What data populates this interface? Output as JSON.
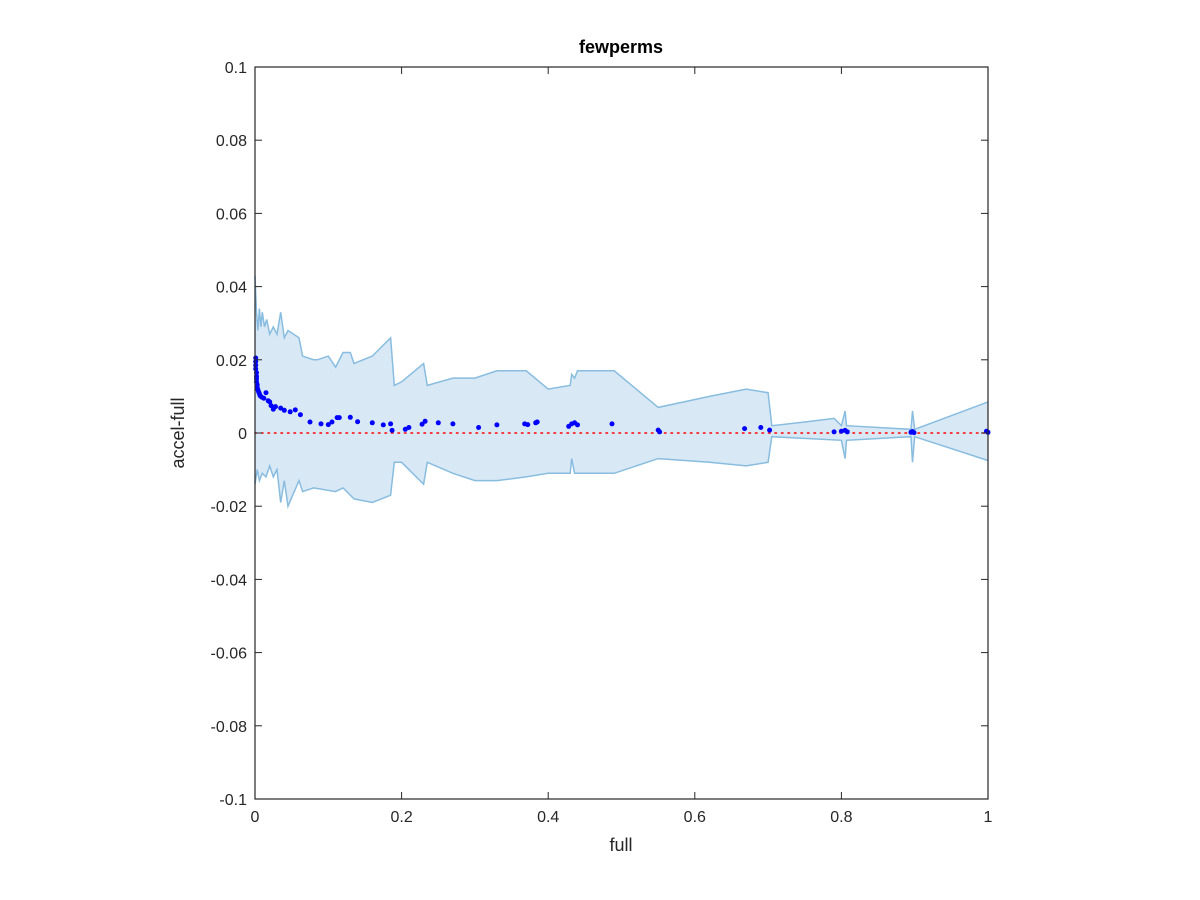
{
  "chart_data": {
    "type": "scatter",
    "title": "fewperms",
    "xlabel": "full",
    "ylabel": "accel-full",
    "xlim": [
      0,
      1
    ],
    "ylim": [
      -0.1,
      0.1
    ],
    "xticks": [
      0,
      0.2,
      0.4,
      0.6,
      0.8,
      1
    ],
    "xtick_labels": [
      "0",
      "0.2",
      "0.4",
      "0.6",
      "0.8",
      "1"
    ],
    "yticks": [
      0.1,
      0.08,
      0.06,
      0.04,
      0.02,
      0,
      -0.02,
      -0.04,
      -0.06,
      -0.08,
      -0.1
    ],
    "ytick_labels": [
      "0.1",
      "0.08",
      "0.06",
      "0.04",
      "0.02",
      "0",
      "-0.02",
      "-0.04",
      "-0.06",
      "-0.08",
      "-0.1"
    ],
    "grid": false,
    "box": true,
    "reference_line": {
      "y": 0,
      "style": "dotted",
      "color": "#ff0000"
    },
    "band": {
      "fill_color": "#d9e8f5",
      "edge_color": "#88bde0",
      "upper": [
        [
          0.0,
          0.043
        ],
        [
          0.002,
          0.033
        ],
        [
          0.004,
          0.028
        ],
        [
          0.006,
          0.034
        ],
        [
          0.008,
          0.029
        ],
        [
          0.01,
          0.033
        ],
        [
          0.013,
          0.029
        ],
        [
          0.016,
          0.031
        ],
        [
          0.02,
          0.027
        ],
        [
          0.025,
          0.029
        ],
        [
          0.03,
          0.027
        ],
        [
          0.035,
          0.033
        ],
        [
          0.04,
          0.026
        ],
        [
          0.045,
          0.028
        ],
        [
          0.06,
          0.026
        ],
        [
          0.065,
          0.021
        ],
        [
          0.08,
          0.02
        ],
        [
          0.085,
          0.02
        ],
        [
          0.1,
          0.021
        ],
        [
          0.11,
          0.018
        ],
        [
          0.12,
          0.022
        ],
        [
          0.13,
          0.022
        ],
        [
          0.135,
          0.019
        ],
        [
          0.16,
          0.021
        ],
        [
          0.185,
          0.026
        ],
        [
          0.19,
          0.013
        ],
        [
          0.2,
          0.014
        ],
        [
          0.23,
          0.019
        ],
        [
          0.235,
          0.013
        ],
        [
          0.27,
          0.015
        ],
        [
          0.3,
          0.015
        ],
        [
          0.33,
          0.017
        ],
        [
          0.37,
          0.017
        ],
        [
          0.4,
          0.012
        ],
        [
          0.43,
          0.013
        ],
        [
          0.432,
          0.016
        ],
        [
          0.436,
          0.015
        ],
        [
          0.44,
          0.017
        ],
        [
          0.49,
          0.017
        ],
        [
          0.55,
          0.007
        ],
        [
          0.62,
          0.01
        ],
        [
          0.67,
          0.012
        ],
        [
          0.7,
          0.011
        ],
        [
          0.705,
          0.002
        ],
        [
          0.75,
          0.003
        ],
        [
          0.79,
          0.004
        ],
        [
          0.8,
          0.002
        ],
        [
          0.805,
          0.006
        ],
        [
          0.807,
          0.002
        ],
        [
          0.895,
          0.001
        ],
        [
          0.897,
          0.006
        ],
        [
          0.9,
          0.001
        ],
        [
          1.0,
          0.0085
        ]
      ],
      "lower": [
        [
          0.0,
          -0.014
        ],
        [
          0.003,
          -0.01
        ],
        [
          0.006,
          -0.013
        ],
        [
          0.01,
          -0.011
        ],
        [
          0.015,
          -0.012
        ],
        [
          0.02,
          -0.009
        ],
        [
          0.025,
          -0.012
        ],
        [
          0.03,
          -0.01
        ],
        [
          0.035,
          -0.019
        ],
        [
          0.04,
          -0.013
        ],
        [
          0.045,
          -0.02
        ],
        [
          0.06,
          -0.013
        ],
        [
          0.065,
          -0.016
        ],
        [
          0.08,
          -0.015
        ],
        [
          0.11,
          -0.016
        ],
        [
          0.12,
          -0.015
        ],
        [
          0.135,
          -0.018
        ],
        [
          0.16,
          -0.019
        ],
        [
          0.185,
          -0.017
        ],
        [
          0.19,
          -0.008
        ],
        [
          0.2,
          -0.008
        ],
        [
          0.23,
          -0.014
        ],
        [
          0.235,
          -0.008
        ],
        [
          0.27,
          -0.011
        ],
        [
          0.3,
          -0.013
        ],
        [
          0.33,
          -0.013
        ],
        [
          0.37,
          -0.012
        ],
        [
          0.4,
          -0.011
        ],
        [
          0.43,
          -0.011
        ],
        [
          0.432,
          -0.007
        ],
        [
          0.436,
          -0.011
        ],
        [
          0.49,
          -0.011
        ],
        [
          0.55,
          -0.007
        ],
        [
          0.62,
          -0.008
        ],
        [
          0.67,
          -0.009
        ],
        [
          0.7,
          -0.008
        ],
        [
          0.705,
          -0.001
        ],
        [
          0.8,
          -0.002
        ],
        [
          0.805,
          -0.007
        ],
        [
          0.807,
          -0.002
        ],
        [
          0.895,
          -0.001
        ],
        [
          0.897,
          -0.008
        ],
        [
          0.9,
          -0.001
        ],
        [
          1.0,
          -0.0075
        ]
      ]
    },
    "series": [
      {
        "marker_color": "#0000ff",
        "points": [
          [
            0.001,
            0.0205
          ],
          [
            0.001,
            0.0195
          ],
          [
            0.001,
            0.0185
          ],
          [
            0.001,
            0.0175
          ],
          [
            0.002,
            0.0165
          ],
          [
            0.002,
            0.0155
          ],
          [
            0.002,
            0.0148
          ],
          [
            0.002,
            0.014
          ],
          [
            0.003,
            0.0132
          ],
          [
            0.003,
            0.0124
          ],
          [
            0.004,
            0.0118
          ],
          [
            0.005,
            0.0112
          ],
          [
            0.006,
            0.0107
          ],
          [
            0.007,
            0.0102
          ],
          [
            0.009,
            0.0098
          ],
          [
            0.012,
            0.0095
          ],
          [
            0.015,
            0.011
          ],
          [
            0.018,
            0.0088
          ],
          [
            0.02,
            0.0085
          ],
          [
            0.022,
            0.0075
          ],
          [
            0.025,
            0.0065
          ],
          [
            0.028,
            0.0072
          ],
          [
            0.035,
            0.0068
          ],
          [
            0.04,
            0.0062
          ],
          [
            0.048,
            0.0058
          ],
          [
            0.055,
            0.0063
          ],
          [
            0.062,
            0.005
          ],
          [
            0.075,
            0.003
          ],
          [
            0.09,
            0.0025
          ],
          [
            0.1,
            0.0023
          ],
          [
            0.105,
            0.003
          ],
          [
            0.112,
            0.0042
          ],
          [
            0.115,
            0.0042
          ],
          [
            0.13,
            0.0043
          ],
          [
            0.14,
            0.0031
          ],
          [
            0.16,
            0.0028
          ],
          [
            0.175,
            0.0022
          ],
          [
            0.185,
            0.0025
          ],
          [
            0.187,
            0.0007
          ],
          [
            0.205,
            0.001
          ],
          [
            0.21,
            0.0015
          ],
          [
            0.228,
            0.0024
          ],
          [
            0.232,
            0.0032
          ],
          [
            0.25,
            0.0028
          ],
          [
            0.27,
            0.0025
          ],
          [
            0.305,
            0.0015
          ],
          [
            0.33,
            0.0022
          ],
          [
            0.368,
            0.0025
          ],
          [
            0.372,
            0.0023
          ],
          [
            0.383,
            0.0028
          ],
          [
            0.385,
            0.003
          ],
          [
            0.428,
            0.0018
          ],
          [
            0.432,
            0.0025
          ],
          [
            0.436,
            0.0028
          ],
          [
            0.44,
            0.0022
          ],
          [
            0.487,
            0.0025
          ],
          [
            0.55,
            0.0008
          ],
          [
            0.552,
            0.0003
          ],
          [
            0.668,
            0.0012
          ],
          [
            0.69,
            0.0015
          ],
          [
            0.702,
            0.0008
          ],
          [
            0.79,
            0.0003
          ],
          [
            0.8,
            0.0005
          ],
          [
            0.805,
            0.0007
          ],
          [
            0.808,
            0.0003
          ],
          [
            0.895,
            0.0002
          ],
          [
            0.897,
            0.0004
          ],
          [
            0.899,
            0.0001
          ],
          [
            0.998,
            0.0005
          ],
          [
            1.0,
            0.0002
          ]
        ]
      }
    ]
  }
}
